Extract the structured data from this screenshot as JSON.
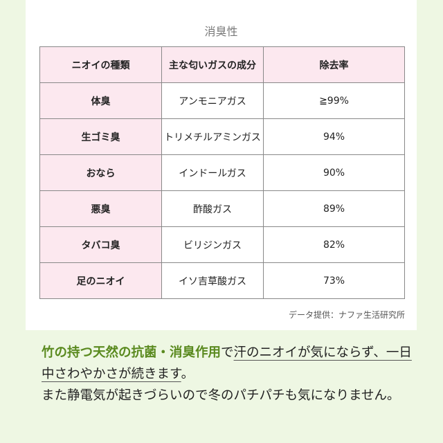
{
  "table": {
    "title": "消臭性",
    "headers": [
      "ニオイの種類",
      "主な匂いガスの成分",
      "除去率"
    ],
    "rows": [
      {
        "kind": "体臭",
        "gas": "アンモニアガス",
        "rate": "≧99%"
      },
      {
        "kind": "生ゴミ臭",
        "gas": "トリメチルアミンガス",
        "rate": "94%"
      },
      {
        "kind": "おなら",
        "gas": "インドールガス",
        "rate": "90%"
      },
      {
        "kind": "悪臭",
        "gas": "酢酸ガス",
        "rate": "89%"
      },
      {
        "kind": "タバコ臭",
        "gas": "ビリジンガス",
        "rate": "82%"
      },
      {
        "kind": "足のニオイ",
        "gas": "イソ吉草酸ガス",
        "rate": "73%"
      }
    ],
    "source": "データ提供：ナファ生活研究所"
  },
  "description": {
    "highlight": "竹の持つ天然の抗菌・消臭作用",
    "connector": "で",
    "underlined": "汗のニオイが気にならず、一日中さわやかさが続きます",
    "period": "。",
    "second": "また静電気が起きづらいので冬のパチパチも気になりません。"
  },
  "colors": {
    "background": "#eef7e3",
    "header_fill": "#fce8ef",
    "highlight": "#5a8a1f"
  }
}
